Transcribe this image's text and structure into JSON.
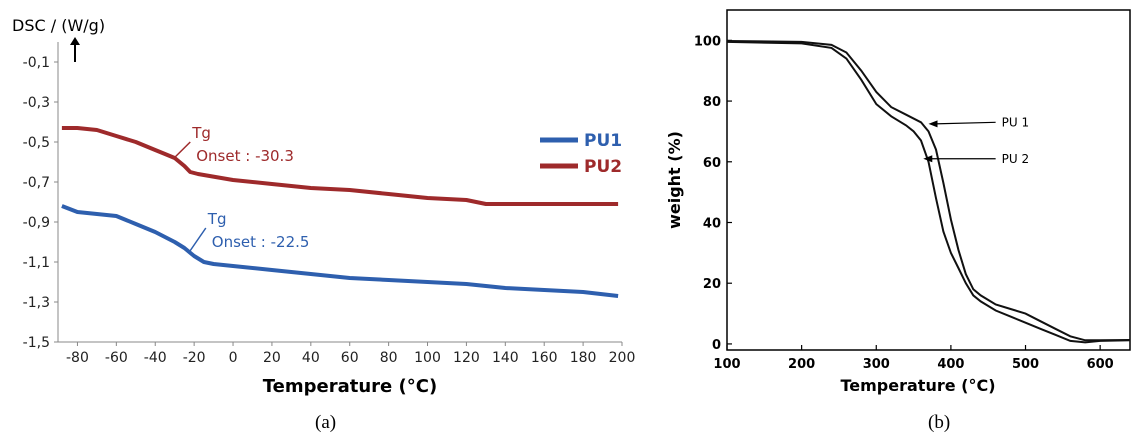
{
  "chart_data": [
    {
      "type": "line",
      "caption": "(a)",
      "ylabel": "DSC / (W/g)",
      "xlabel": "Temperature (°C)",
      "xlim": [
        -90,
        200
      ],
      "ylim": [
        -1.5,
        0.0
      ],
      "x_ticks": [
        -80,
        -60,
        -40,
        -20,
        0,
        20,
        40,
        60,
        80,
        100,
        120,
        140,
        160,
        180,
        200
      ],
      "x_tick_labels": [
        "-80",
        "-60",
        "-40",
        "-20",
        "0",
        "20",
        "40",
        "60",
        "80",
        "100",
        "120",
        "140",
        "160",
        "180",
        "200"
      ],
      "y_ticks": [
        -0.1,
        -0.3,
        -0.5,
        -0.7,
        -0.9,
        -1.1,
        -1.3,
        -1.5
      ],
      "y_tick_labels": [
        "-0,1",
        "-0,3",
        "-0,5",
        "-0,7",
        "-0,9",
        "-1,1",
        "-1,3",
        "-1,5"
      ],
      "legend_position": "top-right",
      "series": [
        {
          "name": "PU1",
          "color": "#2e5fae",
          "x": [
            -88,
            -80,
            -70,
            -60,
            -50,
            -40,
            -30,
            -25,
            -20,
            -15,
            -10,
            0,
            20,
            40,
            60,
            80,
            100,
            120,
            140,
            160,
            180,
            198
          ],
          "values": [
            -0.82,
            -0.85,
            -0.86,
            -0.87,
            -0.91,
            -0.95,
            -1.0,
            -1.03,
            -1.07,
            -1.1,
            -1.11,
            -1.12,
            -1.14,
            -1.16,
            -1.18,
            -1.19,
            -1.2,
            -1.21,
            -1.23,
            -1.24,
            -1.25,
            -1.27
          ]
        },
        {
          "name": "PU2",
          "color": "#9e2a2b",
          "x": [
            -88,
            -80,
            -70,
            -60,
            -50,
            -40,
            -35,
            -30,
            -25,
            -22,
            -18,
            0,
            20,
            40,
            60,
            80,
            100,
            120,
            130,
            140,
            160,
            180,
            198
          ],
          "values": [
            -0.43,
            -0.43,
            -0.44,
            -0.47,
            -0.5,
            -0.54,
            -0.56,
            -0.58,
            -0.62,
            -0.65,
            -0.66,
            -0.69,
            -0.71,
            -0.73,
            -0.74,
            -0.76,
            -0.78,
            -0.79,
            -0.81,
            -0.81,
            -0.81,
            -0.81,
            -0.81
          ]
        }
      ],
      "annotations": [
        {
          "series": "PU2",
          "line1": "Tg",
          "line2": "Onset : -30.3",
          "color": "#9e2a2b",
          "point": [
            -30.3,
            -0.58
          ],
          "anchor": [
            -22,
            -0.5
          ]
        },
        {
          "series": "PU1",
          "line1": "Tg",
          "line2": "Onset : -22.5",
          "color": "#2e5fae",
          "point": [
            -22.5,
            -1.05
          ],
          "anchor": [
            -14,
            -0.93
          ]
        }
      ]
    },
    {
      "type": "line",
      "caption": "(b)",
      "ylabel": "weight (%)",
      "xlabel": "Temperature (°C)",
      "xlim": [
        100,
        640
      ],
      "ylim": [
        -2,
        110
      ],
      "x_ticks": [
        100,
        200,
        300,
        400,
        500,
        600
      ],
      "x_tick_labels": [
        "100",
        "200",
        "300",
        "400",
        "500",
        "600"
      ],
      "y_ticks": [
        0,
        20,
        40,
        60,
        80,
        100
      ],
      "y_tick_labels": [
        "0",
        "20",
        "40",
        "60",
        "80",
        "100"
      ],
      "series": [
        {
          "name": "PU 1",
          "color": "#111111",
          "x": [
            100,
            200,
            240,
            260,
            280,
            300,
            320,
            340,
            360,
            370,
            380,
            390,
            400,
            410,
            420,
            430,
            440,
            460,
            480,
            500,
            520,
            540,
            560,
            580,
            600,
            640
          ],
          "values": [
            99.8,
            99.5,
            98.5,
            96,
            90,
            83,
            78,
            75.5,
            73,
            70,
            64,
            53,
            41,
            31,
            23,
            18,
            16,
            13,
            11.5,
            10,
            7.5,
            5,
            2.5,
            1.2,
            1.2,
            1.3
          ]
        },
        {
          "name": "PU 2",
          "color": "#111111",
          "x": [
            100,
            200,
            240,
            260,
            280,
            300,
            320,
            340,
            350,
            360,
            370,
            380,
            390,
            400,
            410,
            420,
            430,
            440,
            460,
            480,
            500,
            520,
            540,
            560,
            580,
            600,
            640
          ],
          "values": [
            99.5,
            99,
            97.5,
            94,
            87,
            79,
            75,
            72,
            70,
            67,
            60,
            48,
            37,
            30,
            25,
            20,
            16,
            14,
            11,
            9,
            7,
            5,
            3,
            1,
            0.5,
            1,
            1.2
          ]
        }
      ],
      "annotations": [
        {
          "label": "PU 1",
          "arrow_to": [
            370,
            72.5
          ],
          "text_at": [
            468,
            73
          ]
        },
        {
          "label": "PU 2",
          "arrow_to": [
            363,
            61
          ],
          "text_at": [
            468,
            61
          ]
        }
      ]
    }
  ]
}
